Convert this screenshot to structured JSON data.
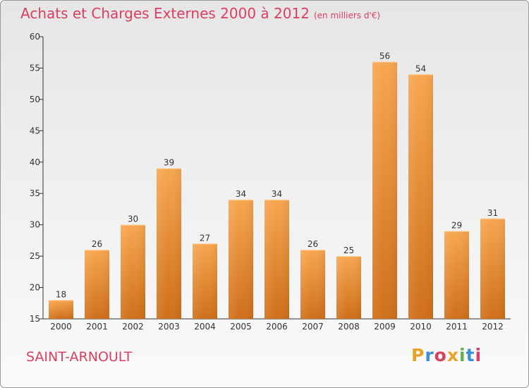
{
  "header": {
    "title": "Achats et Charges Externes 2000 à 2012",
    "subtitle": "(en milliers d'€)"
  },
  "footer": {
    "city": "SAINT-ARNOULT",
    "logo": [
      "P",
      "r",
      "o",
      "x",
      "i",
      "t",
      "i"
    ],
    "logo_colors": [
      "#e8a32a",
      "#3b8fd4",
      "#d9405f",
      "#e8a32a",
      "#63b04a",
      "#3b8fd4",
      "#d9405f"
    ]
  },
  "colors": {
    "title": "#d9405f",
    "bar_light": "#f7a650",
    "bar_dark": "#cf6f1a",
    "axis": "#333333"
  },
  "chart_data": {
    "type": "bar",
    "categories": [
      "2000",
      "2001",
      "2002",
      "2003",
      "2004",
      "2005",
      "2006",
      "2007",
      "2008",
      "2009",
      "2010",
      "2011",
      "2012"
    ],
    "values": [
      18,
      26,
      30,
      39,
      27,
      34,
      34,
      26,
      25,
      56,
      54,
      29,
      31
    ],
    "ylim": [
      15,
      60
    ],
    "yticks": [
      15,
      20,
      25,
      30,
      35,
      40,
      45,
      50,
      55,
      60
    ],
    "grid": false,
    "data_labels": true
  }
}
